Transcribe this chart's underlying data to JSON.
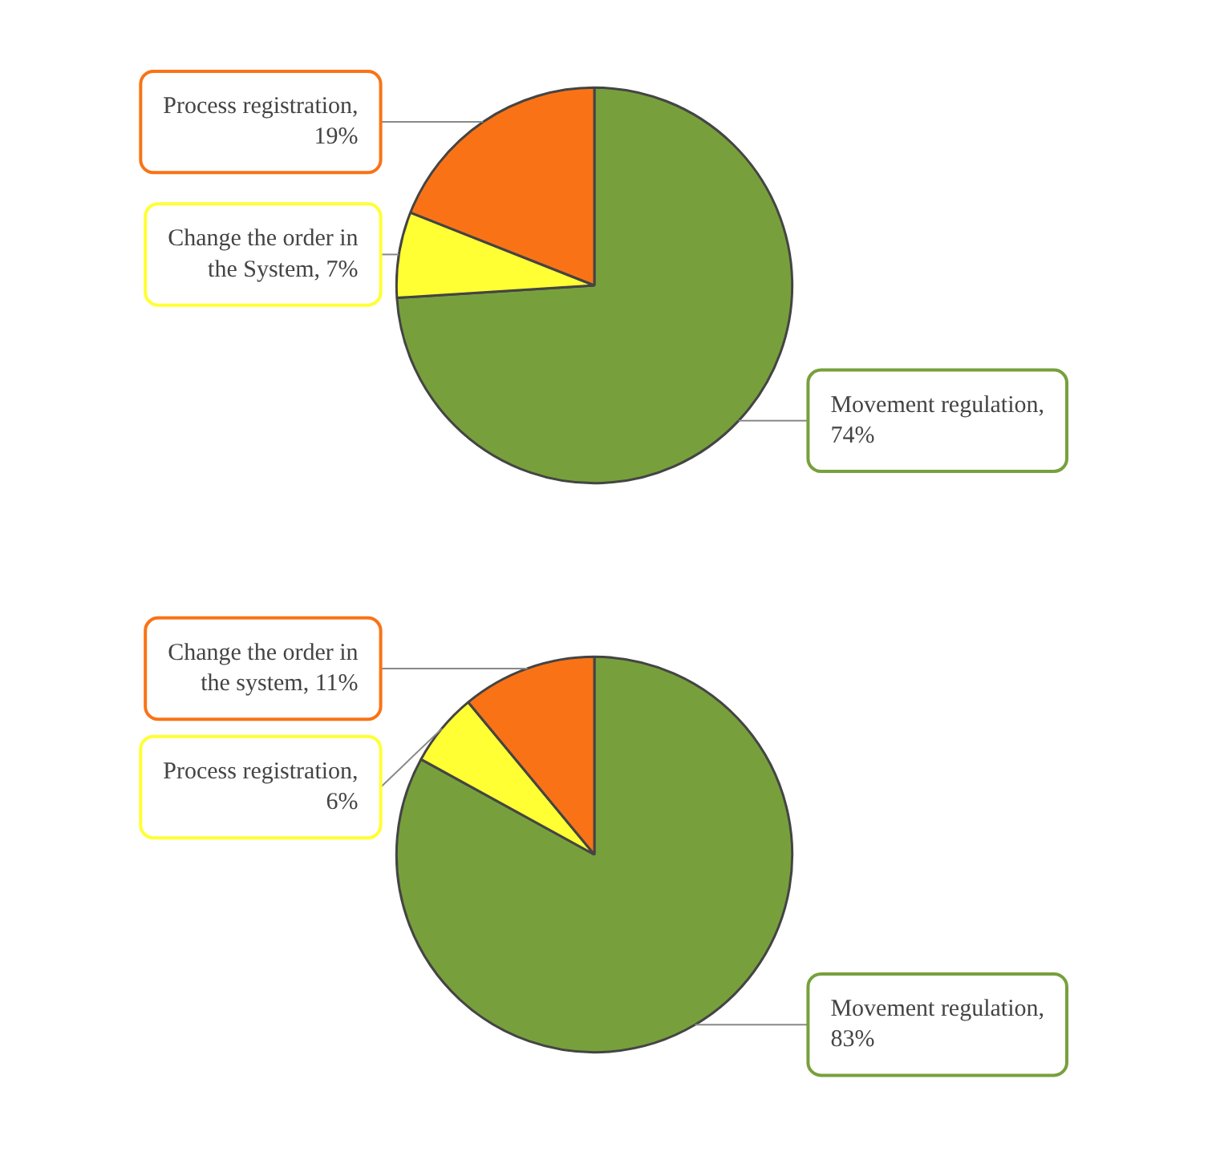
{
  "chart_data": [
    {
      "type": "pie",
      "categories": [
        "Movement regulation, 74%",
        "Change the order in the System, 7%",
        "Process registration, 19%"
      ],
      "values": [
        74,
        7,
        19
      ],
      "colors": [
        "#77a03c",
        "#ffff33",
        "#f97316"
      ]
    },
    {
      "type": "pie",
      "categories": [
        "Movement regulation, 83%",
        "Process registration, 6%",
        "Change the order in the system, 11%"
      ],
      "values": [
        83,
        6,
        11
      ],
      "colors": [
        "#77a03c",
        "#ffff33",
        "#f97316"
      ]
    }
  ]
}
